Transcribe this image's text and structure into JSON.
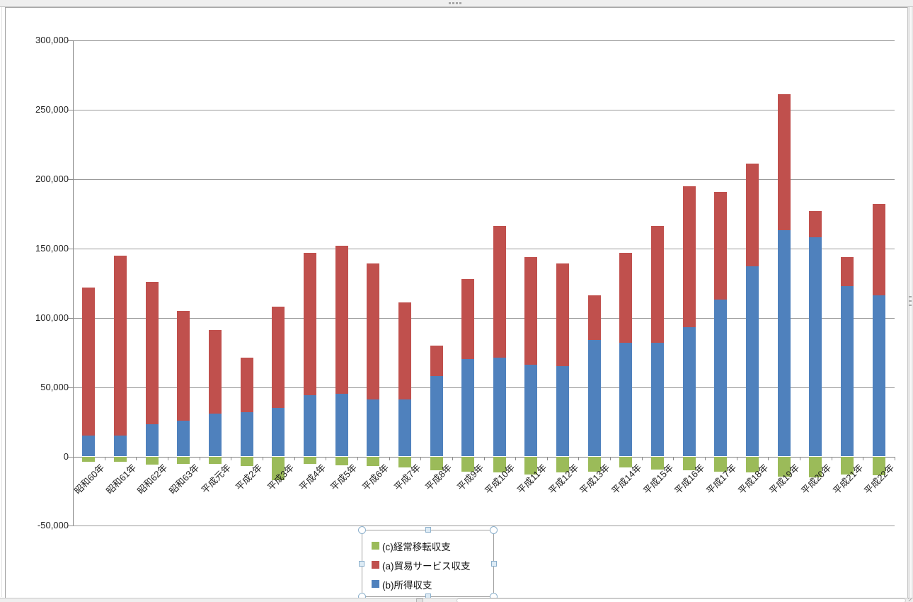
{
  "window": {
    "top_grip_icon": "grip-dots",
    "scrollbars": {
      "vertical": true,
      "horizontal": true
    }
  },
  "chart_data": {
    "type": "bar",
    "stacked": true,
    "title": "",
    "xlabel": "",
    "ylabel": "",
    "ylim": [
      -50000,
      300000
    ],
    "y_tick_step": 50000,
    "grid": true,
    "legend_position": "bottom-center",
    "legend_selected": true,
    "y_ticks": [
      {
        "v": 300000,
        "label": "300,000"
      },
      {
        "v": 250000,
        "label": "250,000"
      },
      {
        "v": 200000,
        "label": "200,000"
      },
      {
        "v": 150000,
        "label": "150,000"
      },
      {
        "v": 100000,
        "label": "100,000"
      },
      {
        "v": 50000,
        "label": "50,000"
      },
      {
        "v": 0,
        "label": "0"
      },
      {
        "v": -50000,
        "label": "-50,000"
      }
    ],
    "categories": [
      "昭和60年",
      "昭和61年",
      "昭和62年",
      "昭和63年",
      "平成元年",
      "平成2年",
      "平成3年",
      "平成4年",
      "平成5年",
      "平成6年",
      "平成7年",
      "平成8年",
      "平成9年",
      "平成10年",
      "平成11年",
      "平成12年",
      "平成13年",
      "平成14年",
      "平成15年",
      "平成16年",
      "平成17年",
      "平成18年",
      "平成19年",
      "平成20年",
      "平成21年",
      "平成22年"
    ],
    "series": [
      {
        "name": "(c)経常移転収支",
        "color": "#9BBB59",
        "stack": "negative",
        "values": [
          -4000,
          -4000,
          -6000,
          -5500,
          -5500,
          -7000,
          -17000,
          -5500,
          -6500,
          -7000,
          -8000,
          -10000,
          -11000,
          -11500,
          -13000,
          -11500,
          -11000,
          -8000,
          -9500,
          -10000,
          -11000,
          -11500,
          -14500,
          -15000,
          -13000,
          -13500
        ]
      },
      {
        "name": "(a)貿易サービス収支",
        "color": "#C0504D",
        "stack": "upper",
        "values": [
          107000,
          130000,
          103000,
          79000,
          60000,
          39000,
          73000,
          103000,
          107000,
          98000,
          70000,
          22000,
          58000,
          95000,
          78000,
          74000,
          32000,
          65000,
          84000,
          102000,
          78000,
          74000,
          98000,
          19000,
          21000,
          66000
        ]
      },
      {
        "name": "(b)所得収支",
        "color": "#4F81BD",
        "stack": "lower",
        "values": [
          15000,
          15000,
          23000,
          26000,
          31000,
          32000,
          35000,
          44000,
          45000,
          41000,
          41000,
          58000,
          70000,
          71000,
          66000,
          65000,
          84000,
          82000,
          82000,
          93000,
          113000,
          137000,
          163000,
          158000,
          123000,
          116000
        ]
      }
    ]
  }
}
